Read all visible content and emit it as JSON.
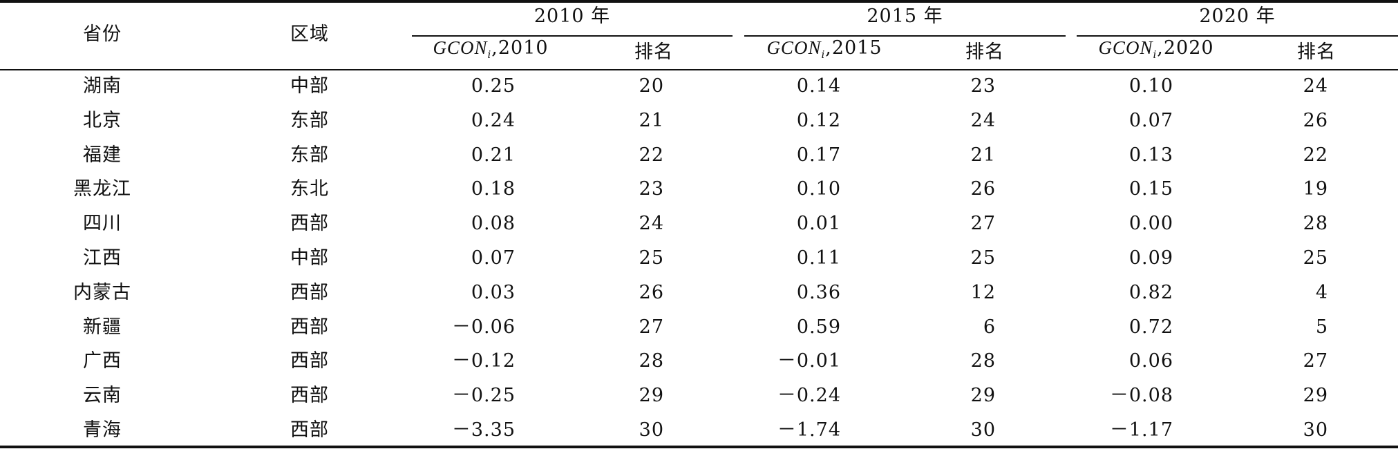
{
  "table": {
    "header": {
      "province": "省份",
      "region": "区域",
      "groups": [
        {
          "title": "2010 年",
          "value_name": "GCON",
          "value_sub": "i",
          "value_suffix": ",2010",
          "rank": "排名"
        },
        {
          "title": "2015 年",
          "value_name": "GCON",
          "value_sub": "i",
          "value_suffix": ",2015",
          "rank": "排名"
        },
        {
          "title": "2020 年",
          "value_name": "GCON",
          "value_sub": "i",
          "value_suffix": ",2020",
          "rank": "排名"
        }
      ]
    },
    "rows": [
      [
        "湖南",
        "中部",
        "0.25",
        "20",
        "0.14",
        "23",
        "0.10",
        "24"
      ],
      [
        "北京",
        "东部",
        "0.24",
        "21",
        "0.12",
        "24",
        "0.07",
        "26"
      ],
      [
        "福建",
        "东部",
        "0.21",
        "22",
        "0.17",
        "21",
        "0.13",
        "22"
      ],
      [
        "黑龙江",
        "东北",
        "0.18",
        "23",
        "0.10",
        "26",
        "0.15",
        "19"
      ],
      [
        "四川",
        "西部",
        "0.08",
        "24",
        "0.01",
        "27",
        "0.00",
        "28"
      ],
      [
        "江西",
        "中部",
        "0.07",
        "25",
        "0.11",
        "25",
        "0.09",
        "25"
      ],
      [
        "内蒙古",
        "西部",
        "0.03",
        "26",
        "0.36",
        "12",
        "0.82",
        "4"
      ],
      [
        "新疆",
        "西部",
        "－0.06",
        "27",
        "0.59",
        "6",
        "0.72",
        "5"
      ],
      [
        "广西",
        "西部",
        "－0.12",
        "28",
        "－0.01",
        "28",
        "0.06",
        "27"
      ],
      [
        "云南",
        "西部",
        "－0.25",
        "29",
        "－0.24",
        "29",
        "－0.08",
        "29"
      ],
      [
        "青海",
        "西部",
        "－3.35",
        "30",
        "－1.74",
        "30",
        "－1.17",
        "30"
      ]
    ]
  }
}
